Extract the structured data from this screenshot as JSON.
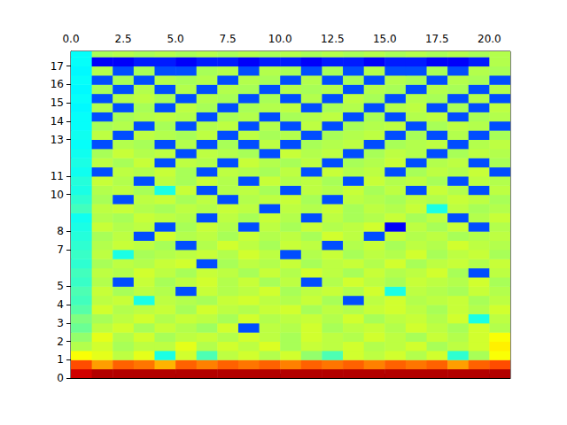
{
  "chart_data": {
    "type": "heatmap",
    "xlim": [
      0,
      21
    ],
    "xticks": [
      {
        "value": 0,
        "label": "0.0"
      },
      2.5,
      {
        "value": 5,
        "label": "5.0"
      },
      7.5,
      {
        "value": 10,
        "label": "10.0"
      },
      12.5,
      {
        "value": 15,
        "label": "15.0"
      },
      17.5,
      {
        "value": 20,
        "label": "20.0"
      }
    ],
    "ylim": [
      0,
      17.8
    ],
    "yticks": [
      0,
      1,
      2,
      3,
      4,
      5,
      7,
      8,
      10,
      11,
      13,
      14,
      15,
      16,
      17
    ],
    "color_range": [
      -100,
      0
    ],
    "x_edges": [
      0,
      1,
      2,
      3,
      4,
      5,
      6,
      7,
      8,
      9,
      10,
      11,
      12,
      13,
      14,
      15,
      16,
      17,
      18,
      19,
      20,
      21
    ],
    "y_edges": [
      0,
      0.5,
      1,
      1.5,
      2,
      2.5,
      3,
      3.5,
      4,
      4.5,
      5,
      5.5,
      6,
      6.5,
      7,
      7.5,
      8,
      8.5,
      9,
      9.5,
      10,
      10.5,
      11,
      11.5,
      12,
      12.5,
      13,
      13.5,
      14,
      14.5,
      15,
      15.5,
      16,
      16.5,
      17,
      17.5,
      18
    ],
    "cells": [
      [
        -8,
        -5,
        -5,
        -5,
        -5,
        -5,
        -5,
        -5,
        -5,
        -5,
        -5,
        -5,
        -5,
        -5,
        -5,
        -5,
        -5,
        -5,
        -5,
        -5,
        -5
      ],
      [
        -20,
        -28,
        -22,
        -24,
        -30,
        -22,
        -25,
        -22,
        -24,
        -22,
        -25,
        -22,
        -24,
        -22,
        -25,
        -22,
        -24,
        -22,
        -28,
        -22,
        -20
      ],
      [
        -38,
        -40,
        -44,
        -40,
        -60,
        -42,
        -55,
        -44,
        -42,
        -45,
        -42,
        -48,
        -55,
        -42,
        -44,
        -42,
        -45,
        -42,
        -58,
        -46,
        -38
      ],
      [
        -45,
        -42,
        -46,
        -44,
        -44,
        -40,
        -45,
        -42,
        -44,
        -41,
        -46,
        -43,
        -44,
        -42,
        -45,
        -44,
        -42,
        -46,
        -44,
        -42,
        -36
      ],
      [
        -48,
        -40,
        -45,
        -42,
        -46,
        -44,
        -43,
        -45,
        -42,
        -44,
        -46,
        -42,
        -44,
        -45,
        -42,
        -44,
        -46,
        -43,
        -45,
        -42,
        -38
      ],
      [
        -52,
        -44,
        -42,
        -46,
        -43,
        -45,
        -47,
        -42,
        -80,
        -44,
        -45,
        -42,
        -46,
        -44,
        -43,
        -45,
        -42,
        -44,
        -46,
        -42,
        -45
      ],
      [
        -50,
        -46,
        -44,
        -42,
        -45,
        -43,
        -44,
        -46,
        -42,
        -45,
        -44,
        -43,
        -45,
        -42,
        -46,
        -44,
        -43,
        -45,
        -42,
        -60,
        -44
      ],
      [
        -54,
        -42,
        -45,
        -44,
        -43,
        -46,
        -42,
        -44,
        -45,
        -43,
        -42,
        -46,
        -44,
        -45,
        -43,
        -42,
        -44,
        -46,
        -43,
        -45,
        -42
      ],
      [
        -56,
        -44,
        -43,
        -60,
        -44,
        -45,
        -46,
        -43,
        -42,
        -44,
        -45,
        -43,
        -46,
        -80,
        -44,
        -42,
        -45,
        -44,
        -43,
        -46,
        -44
      ],
      [
        -55,
        -43,
        -46,
        -44,
        -45,
        -80,
        -43,
        -45,
        -44,
        -42,
        -46,
        -44,
        -43,
        -45,
        -42,
        -60,
        -44,
        -45,
        -46,
        -43,
        -45
      ],
      [
        -57,
        -45,
        -80,
        -43,
        -46,
        -44,
        -42,
        -45,
        -43,
        -46,
        -44,
        -80,
        -45,
        -42,
        -44,
        -46,
        -43,
        -44,
        -45,
        -42,
        -46
      ],
      [
        -56,
        -44,
        -45,
        -42,
        -44,
        -46,
        -43,
        -44,
        -46,
        -43,
        -45,
        -42,
        -44,
        -46,
        -43,
        -45,
        -44,
        -42,
        -46,
        -80,
        -44
      ],
      [
        -58,
        -46,
        -44,
        -45,
        -43,
        -42,
        -80,
        -46,
        -44,
        -45,
        -43,
        -46,
        -44,
        -43,
        -45,
        -42,
        -46,
        -44,
        -43,
        -45,
        -43
      ],
      [
        -57,
        -44,
        -60,
        -46,
        -45,
        -44,
        -43,
        -45,
        -42,
        -44,
        -80,
        -45,
        -43,
        -46,
        -44,
        -45,
        -42,
        -46,
        -44,
        -43,
        -46
      ],
      [
        -58,
        -45,
        -43,
        -44,
        -46,
        -80,
        -45,
        -42,
        -44,
        -46,
        -43,
        -44,
        -80,
        -45,
        -43,
        -46,
        -44,
        -45,
        -42,
        -44,
        -45
      ],
      [
        -59,
        -46,
        -44,
        -80,
        -42,
        -45,
        -44,
        -46,
        -43,
        -45,
        -44,
        -46,
        -42,
        -44,
        -80,
        -43,
        -45,
        -44,
        -46,
        -45,
        -44
      ],
      [
        -60,
        -43,
        -45,
        -44,
        -80,
        -46,
        -43,
        -45,
        -80,
        -44,
        -46,
        -43,
        -45,
        -44,
        -42,
        -88,
        -44,
        -46,
        -43,
        -80,
        -45
      ],
      [
        -61,
        -45,
        -46,
        -43,
        -44,
        -45,
        -80,
        -44,
        -46,
        -43,
        -45,
        -80,
        -44,
        -46,
        -45,
        -43,
        -46,
        -44,
        -80,
        -45,
        -43
      ],
      [
        -56,
        -44,
        -43,
        -45,
        -46,
        -44,
        -45,
        -43,
        -44,
        -80,
        -44,
        -45,
        -43,
        -46,
        -44,
        -45,
        -43,
        -60,
        -44,
        -46,
        -45
      ],
      [
        -58,
        -46,
        -80,
        -44,
        -43,
        -46,
        -44,
        -80,
        -45,
        -44,
        -43,
        -46,
        -80,
        -44,
        -45,
        -46,
        -44,
        -45,
        -43,
        -44,
        -46
      ],
      [
        -60,
        -45,
        -44,
        -46,
        -60,
        -43,
        -80,
        -45,
        -44,
        -46,
        -80,
        -44,
        -45,
        -43,
        -46,
        -44,
        -80,
        -43,
        -45,
        -80,
        -44
      ],
      [
        -59,
        -43,
        -45,
        -80,
        -44,
        -46,
        -43,
        -45,
        -80,
        -43,
        -45,
        -44,
        -46,
        -80,
        -43,
        -45,
        -44,
        -46,
        -80,
        -44,
        -45
      ],
      [
        -61,
        -80,
        -44,
        -45,
        -43,
        -46,
        -80,
        -44,
        -45,
        -46,
        -44,
        -80,
        -43,
        -45,
        -44,
        -80,
        -46,
        -44,
        -45,
        -43,
        -80
      ],
      [
        -60,
        -44,
        -46,
        -43,
        -80,
        -44,
        -45,
        -80,
        -43,
        -45,
        -46,
        -44,
        -80,
        -46,
        -45,
        -43,
        -80,
        -45,
        -44,
        -80,
        -46
      ],
      [
        -61,
        -46,
        -43,
        -45,
        -44,
        -80,
        -44,
        -45,
        -46,
        -80,
        -43,
        -45,
        -44,
        -80,
        -46,
        -44,
        -45,
        -80,
        -46,
        -44,
        -45
      ],
      [
        -62,
        -80,
        -45,
        -46,
        -80,
        -45,
        -80,
        -46,
        -80,
        -44,
        -80,
        -46,
        -45,
        -44,
        -80,
        -46,
        -45,
        -44,
        -80,
        -45,
        -44
      ],
      [
        -61,
        -44,
        -80,
        -44,
        -45,
        -46,
        -44,
        -80,
        -44,
        -46,
        -45,
        -80,
        -46,
        -45,
        -44,
        -80,
        -46,
        -80,
        -45,
        -80,
        -46
      ],
      [
        -62,
        -46,
        -45,
        -80,
        -46,
        -80,
        -45,
        -44,
        -80,
        -45,
        -80,
        -44,
        -80,
        -46,
        -45,
        -44,
        -80,
        -46,
        -44,
        -45,
        -80
      ],
      [
        -62,
        -80,
        -46,
        -45,
        -44,
        -45,
        -80,
        -46,
        -45,
        -80,
        -46,
        -45,
        -44,
        -80,
        -46,
        -80,
        -45,
        -44,
        -80,
        -46,
        -45
      ],
      [
        -63,
        -45,
        -80,
        -46,
        -80,
        -44,
        -46,
        -80,
        -46,
        -45,
        -44,
        -80,
        -46,
        -45,
        -80,
        -45,
        -44,
        -80,
        -46,
        -80,
        -44
      ],
      [
        -62,
        -80,
        -45,
        -44,
        -46,
        -80,
        -45,
        -46,
        -80,
        -46,
        -80,
        -45,
        -80,
        -44,
        -46,
        -80,
        -45,
        -46,
        -80,
        -45,
        -80
      ],
      [
        -63,
        -46,
        -80,
        -45,
        -80,
        -45,
        -80,
        -45,
        -46,
        -80,
        -45,
        -46,
        -45,
        -80,
        -45,
        -46,
        -80,
        -45,
        -46,
        -80,
        -45
      ],
      [
        -62,
        -80,
        -46,
        -80,
        -45,
        -46,
        -45,
        -80,
        -45,
        -46,
        -80,
        -45,
        -80,
        -46,
        -80,
        -45,
        -46,
        -80,
        -45,
        -46,
        -80
      ],
      [
        -63,
        -45,
        -80,
        -46,
        -80,
        -80,
        -46,
        -45,
        -80,
        -45,
        -46,
        -80,
        -46,
        -80,
        -45,
        -80,
        -80,
        -46,
        -80,
        -45,
        -46
      ],
      [
        -62,
        -88,
        -88,
        -85,
        -85,
        -88,
        -85,
        -85,
        -88,
        -85,
        -85,
        -88,
        -85,
        -85,
        -88,
        -85,
        -85,
        -88,
        -88,
        -85,
        -45
      ],
      [
        -62,
        -46,
        -45,
        -46,
        -45,
        -46,
        -45,
        -46,
        -45,
        -46,
        -45,
        -46,
        -45,
        -46,
        -45,
        -46,
        -45,
        -46,
        -45,
        -46,
        -45
      ]
    ]
  }
}
